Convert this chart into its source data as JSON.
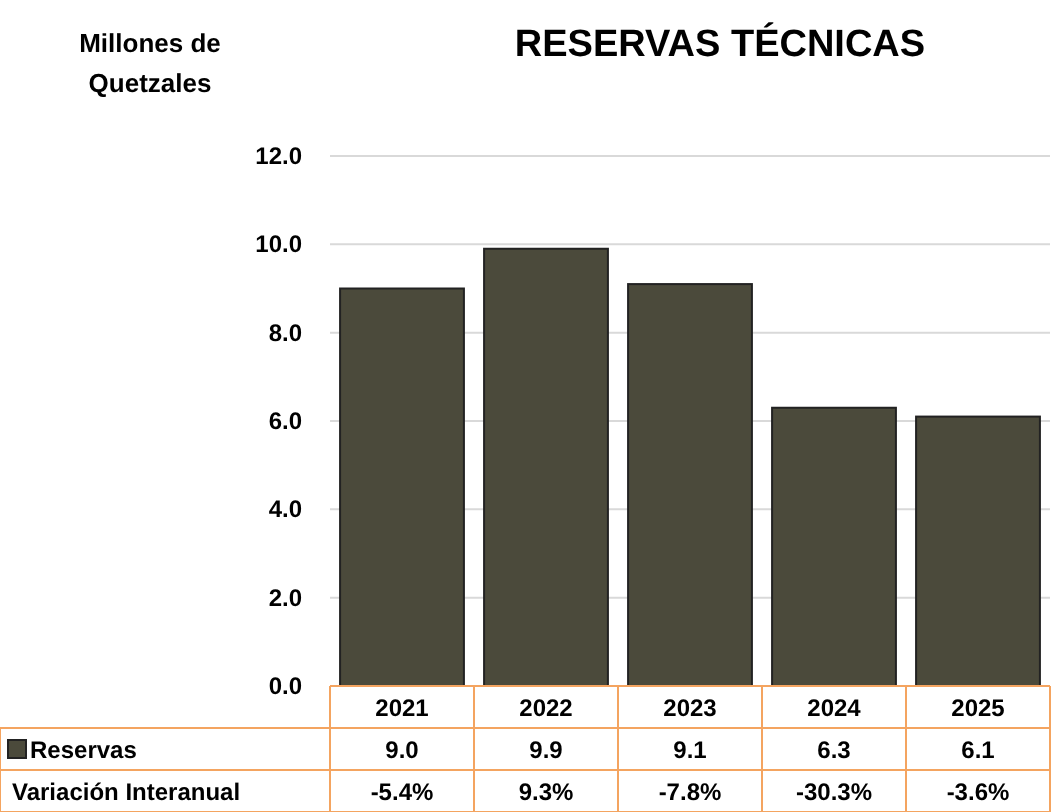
{
  "chart_data": {
    "type": "bar",
    "title": "RESERVAS TÉCNICAS",
    "ylabel": "Millones de Quetzales",
    "categories": [
      "2021",
      "2022",
      "2023",
      "2024",
      "2025"
    ],
    "series": [
      {
        "name": "Reservas",
        "color": "#4b4a3b",
        "values": [
          9.0,
          9.9,
          9.1,
          6.3,
          6.1
        ],
        "value_labels": [
          "9.0",
          "9.9",
          "9.1",
          "6.3",
          "6.1"
        ]
      }
    ],
    "ylim": [
      0,
      12
    ],
    "yticks": [
      {
        "value": 0,
        "label": "0.0"
      },
      {
        "value": 2,
        "label": "2.0"
      },
      {
        "value": 4,
        "label": "4.0"
      },
      {
        "value": 6,
        "label": "6.0"
      },
      {
        "value": 8,
        "label": "8.0"
      },
      {
        "value": 10,
        "label": "10.0"
      },
      {
        "value": 12,
        "label": "12.0"
      }
    ],
    "grid": "y",
    "legend": "bottom",
    "annotations": [
      "Variación Interanual",
      "-5.4%",
      "9.3%",
      "-7.8%",
      "-30.3%",
      "-3.6%"
    ]
  }
}
